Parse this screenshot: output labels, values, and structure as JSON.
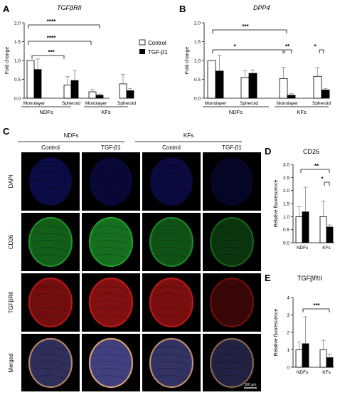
{
  "panels": {
    "A": "A",
    "B": "B",
    "C": "C",
    "D": "D",
    "E": "E"
  },
  "legend": {
    "control": "Control",
    "tgf": "TGF-β1"
  },
  "colors": {
    "control": "#ffffff",
    "tgf": "#000000",
    "dapi": "#1a1aa8",
    "cd26": "#1f9c2a",
    "tgfbrii": "#c01818",
    "merged_core": "#5a5ab0",
    "merged_rim": "#d9a070"
  },
  "micro": {
    "col_groups": [
      "NDFs",
      "KFs"
    ],
    "cols": [
      "Control",
      "TGF-β1",
      "Control",
      "TGF-β1"
    ],
    "rows": [
      "DAPI",
      "CD26",
      "TGFβRII",
      "Merged"
    ],
    "scale_label": "100 µm",
    "intensity": [
      [
        0.55,
        0.45,
        0.5,
        0.3
      ],
      [
        0.8,
        0.95,
        0.7,
        0.45
      ],
      [
        0.8,
        0.9,
        0.85,
        0.4
      ],
      [
        0.7,
        0.95,
        0.75,
        0.5
      ]
    ]
  },
  "chart_data": [
    {
      "id": "A",
      "type": "bar",
      "title": "TGFβRII",
      "ylabel": "Fold change",
      "ylim": [
        0,
        2.0
      ],
      "yticks": [
        "0.0",
        "0.5",
        "1.0",
        "1.5",
        "2.0"
      ],
      "categories": [
        "Monolayer",
        "Spheroid",
        "Monolayer",
        "Spheroid"
      ],
      "groups": [
        "NDFs",
        "KFs"
      ],
      "series": [
        {
          "name": "Control",
          "values": [
            1.0,
            0.35,
            0.17,
            0.38
          ],
          "err": [
            0,
            0.22,
            0.06,
            0.25
          ]
        },
        {
          "name": "TGF-β1",
          "values": [
            0.76,
            0.47,
            0.08,
            0.2
          ],
          "err": [
            0.28,
            0.27,
            0.03,
            0.06
          ]
        }
      ],
      "significance": [
        "***",
        "****",
        "****"
      ]
    },
    {
      "id": "B",
      "type": "bar",
      "title": "DPP4",
      "ylabel": "Fold change",
      "ylim": [
        0,
        2.0
      ],
      "yticks": [
        "0.0",
        "0.5",
        "1.0",
        "1.5",
        "2.0"
      ],
      "categories": [
        "Monolayer",
        "Spheroid",
        "Monolayer",
        "Spheroid"
      ],
      "groups": [
        "NDFs",
        "KFs"
      ],
      "series": [
        {
          "name": "Control",
          "values": [
            1.0,
            0.55,
            0.52,
            0.58
          ],
          "err": [
            0,
            0.18,
            0.3,
            0.23
          ]
        },
        {
          "name": "TGF-β1",
          "values": [
            0.72,
            0.66,
            0.08,
            0.22
          ],
          "err": [
            0.42,
            0.09,
            0.04,
            0.04
          ]
        }
      ],
      "significance": [
        "***",
        "*",
        "**",
        "*"
      ]
    },
    {
      "id": "D",
      "type": "bar",
      "title": "CD26",
      "ylabel": "Relative fluorescence",
      "ylim": [
        0,
        3.0
      ],
      "yticks": [
        "0.0",
        "0.5",
        "1.0",
        "1.5",
        "2.0",
        "2.5",
        "3.0"
      ],
      "categories": [
        "NDFs",
        "KFs"
      ],
      "series": [
        {
          "name": "Control",
          "values": [
            1.0,
            1.0
          ],
          "err": [
            0.38,
            0.6
          ]
        },
        {
          "name": "TGF-β1",
          "values": [
            1.18,
            0.6
          ],
          "err": [
            0.95,
            0.08
          ]
        }
      ],
      "significance": [
        "**",
        "*"
      ]
    },
    {
      "id": "E",
      "type": "bar",
      "title": "TGFβRII",
      "ylabel": "Relative fluorescence",
      "ylim": [
        0,
        4
      ],
      "yticks": [
        "0",
        "1",
        "2",
        "3",
        "4"
      ],
      "categories": [
        "NDFs",
        "KFs"
      ],
      "series": [
        {
          "name": "Control",
          "values": [
            1.0,
            1.0
          ],
          "err": [
            0.45,
            0.55
          ]
        },
        {
          "name": "TGF-β1",
          "values": [
            1.35,
            0.55
          ],
          "err": [
            1.55,
            0.2
          ]
        }
      ],
      "significance": [
        "***"
      ]
    }
  ]
}
